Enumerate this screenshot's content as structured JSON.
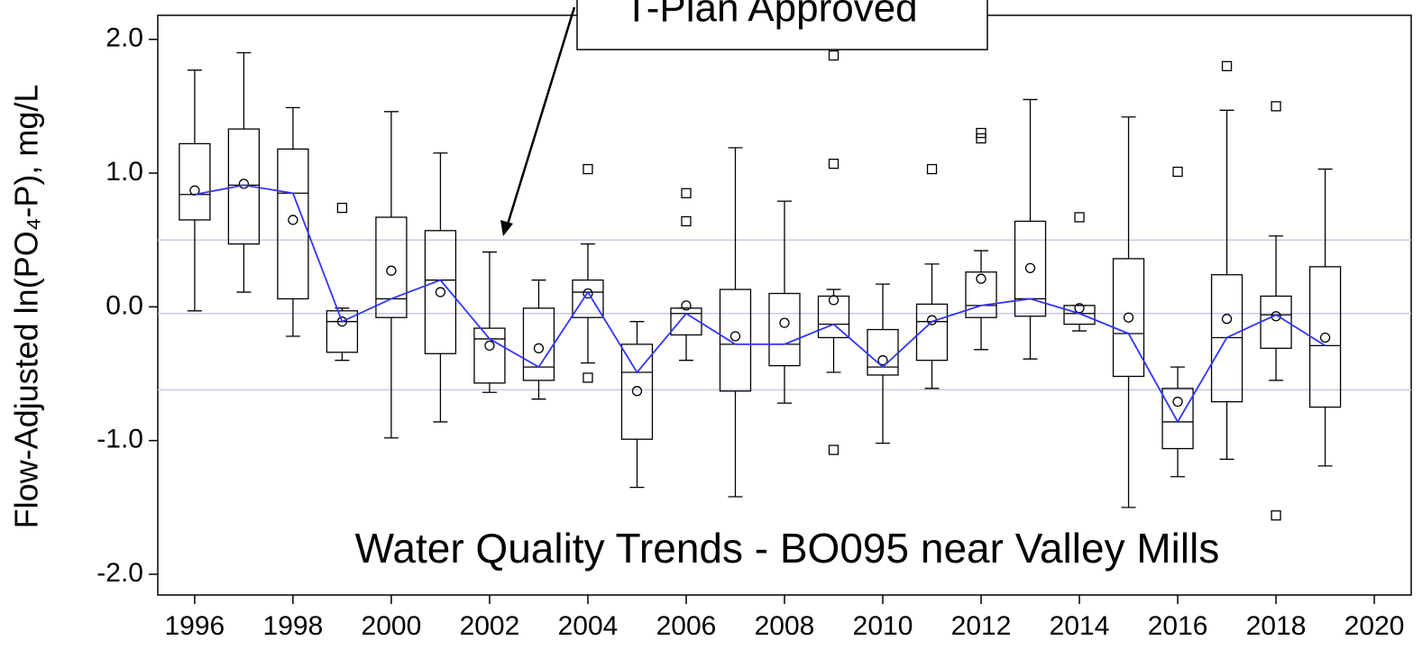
{
  "chart_data": {
    "type": "box",
    "title": "Water Quality Trends - BO095 near Valley Mills",
    "ylabel": "Flow-Adjusted ln(PO₄-P), mg/L",
    "annotation": "T-Plan Approved",
    "x": [
      1996,
      1997,
      1998,
      1999,
      2000,
      2001,
      2002,
      2003,
      2004,
      2005,
      2006,
      2007,
      2008,
      2009,
      2010,
      2011,
      2012,
      2013,
      2014,
      2015,
      2016,
      2017,
      2018,
      2019
    ],
    "whislo": [
      -0.03,
      0.11,
      -0.22,
      -0.4,
      -0.98,
      -0.86,
      -0.64,
      -0.69,
      -0.42,
      -1.35,
      -0.4,
      -1.42,
      -0.72,
      -0.49,
      -1.02,
      -0.61,
      -0.32,
      -0.39,
      -0.18,
      -1.5,
      -1.27,
      -1.14,
      -0.55,
      -1.19
    ],
    "q1": [
      0.65,
      0.47,
      0.06,
      -0.34,
      -0.08,
      -0.35,
      -0.57,
      -0.55,
      -0.08,
      -0.99,
      -0.21,
      -0.63,
      -0.44,
      -0.23,
      -0.51,
      -0.4,
      -0.08,
      -0.07,
      -0.13,
      -0.52,
      -1.06,
      -0.71,
      -0.31,
      -0.75
    ],
    "median": [
      0.84,
      0.91,
      0.85,
      -0.11,
      0.06,
      0.2,
      -0.24,
      -0.45,
      0.11,
      -0.49,
      -0.05,
      -0.28,
      -0.28,
      -0.13,
      -0.45,
      -0.11,
      0.01,
      0.06,
      -0.05,
      -0.2,
      -0.86,
      -0.23,
      -0.06,
      -0.29
    ],
    "q3": [
      1.22,
      1.33,
      1.18,
      -0.03,
      0.67,
      0.57,
      -0.16,
      -0.01,
      0.2,
      -0.28,
      -0.01,
      0.13,
      0.1,
      0.08,
      -0.17,
      0.02,
      0.26,
      0.64,
      0.01,
      0.36,
      -0.61,
      0.24,
      0.08,
      0.3
    ],
    "whishi": [
      1.77,
      1.9,
      1.49,
      -0.01,
      1.46,
      1.15,
      0.41,
      0.2,
      0.47,
      -0.11,
      -0.01,
      1.19,
      0.79,
      0.13,
      0.17,
      0.32,
      0.42,
      1.55,
      0.01,
      1.42,
      -0.45,
      1.47,
      0.53,
      1.03
    ],
    "mean": [
      0.87,
      0.92,
      0.65,
      -0.11,
      0.27,
      0.11,
      -0.29,
      -0.31,
      0.1,
      -0.63,
      0.01,
      -0.22,
      -0.12,
      0.05,
      -0.4,
      -0.1,
      0.21,
      0.29,
      -0.01,
      -0.08,
      -0.71,
      -0.09,
      -0.07,
      -0.23
    ],
    "outliers": [
      [],
      [],
      [],
      [
        0.74
      ],
      [],
      [],
      [],
      [],
      [
        1.03,
        -0.53
      ],
      [],
      [
        0.85,
        0.64
      ],
      [],
      [],
      [
        1.88,
        1.07,
        -1.07
      ],
      [],
      [
        1.03
      ],
      [
        1.3,
        1.26
      ],
      [],
      [
        0.67
      ],
      [],
      [
        1.01
      ],
      [
        1.8
      ],
      [
        1.5,
        -1.56
      ],
      []
    ],
    "median_line_color": "#3333ff",
    "reference_lines": [
      0.5,
      -0.05,
      -0.62
    ],
    "reference_color": "#c5cbe0",
    "xlim": [
      1995.25,
      2020.75
    ],
    "ylim": [
      -2.155,
      2.18
    ],
    "xticks": [
      1996,
      1998,
      2000,
      2002,
      2004,
      2006,
      2008,
      2010,
      2012,
      2014,
      2016,
      2018,
      2020
    ],
    "yticks": [
      {
        "value": 2,
        "label": "2.0"
      },
      {
        "value": 1,
        "label": "1.0"
      },
      {
        "value": 0,
        "label": "0.0"
      },
      {
        "value": -1,
        "label": "-1.0"
      },
      {
        "value": -2,
        "label": "-2.0"
      }
    ]
  }
}
